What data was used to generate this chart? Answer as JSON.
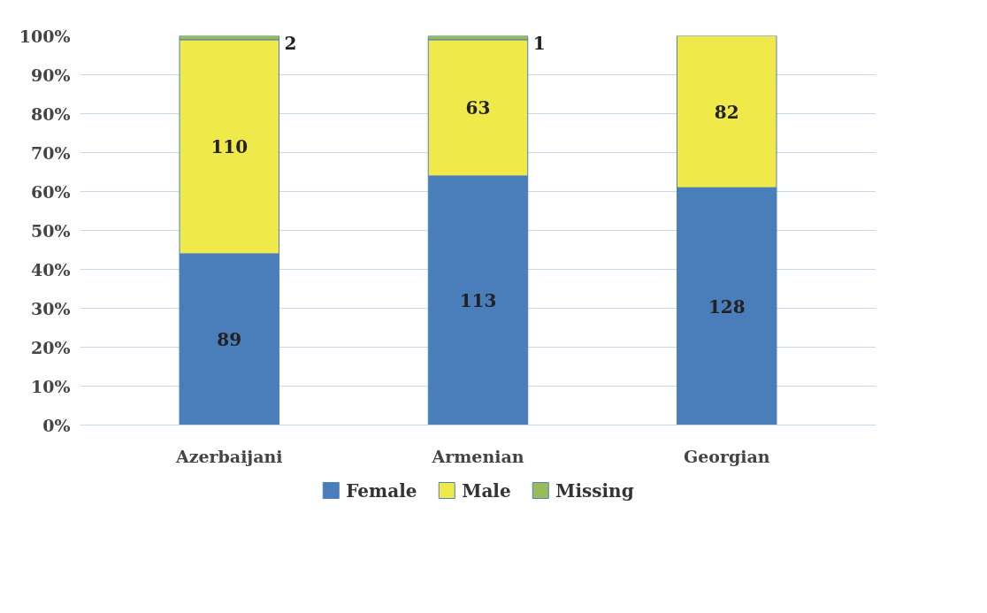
{
  "chart_data": {
    "type": "bar",
    "stacked": true,
    "categories": [
      "Azerbaijani",
      "Armenian",
      "Georgian"
    ],
    "series": [
      {
        "name": "Female",
        "color": "#4a7ebb",
        "values": [
          44,
          64,
          61
        ]
      },
      {
        "name": "Male",
        "color": "#efe94a",
        "values": [
          55,
          35,
          39
        ]
      },
      {
        "name": "Missing",
        "color": "#9bbb59",
        "values": [
          1,
          1,
          null
        ]
      }
    ],
    "annotations": [
      "89",
      "113",
      "128",
      "110",
      "63",
      "82",
      "2",
      "1"
    ],
    "ylim": [
      0,
      100
    ],
    "yticks": [
      {
        "value": 0,
        "label": "0%"
      },
      {
        "value": 10,
        "label": "10%"
      },
      {
        "value": 20,
        "label": "20%"
      },
      {
        "value": 30,
        "label": "30%"
      },
      {
        "value": 40,
        "label": "40%"
      },
      {
        "value": 50,
        "label": "50%"
      },
      {
        "value": 60,
        "label": "60%"
      },
      {
        "value": 70,
        "label": "70%"
      },
      {
        "value": 80,
        "label": "80%"
      },
      {
        "value": 90,
        "label": "90%"
      },
      {
        "value": 100,
        "label": "100%"
      }
    ],
    "grid": "y",
    "legend": "bottom"
  }
}
